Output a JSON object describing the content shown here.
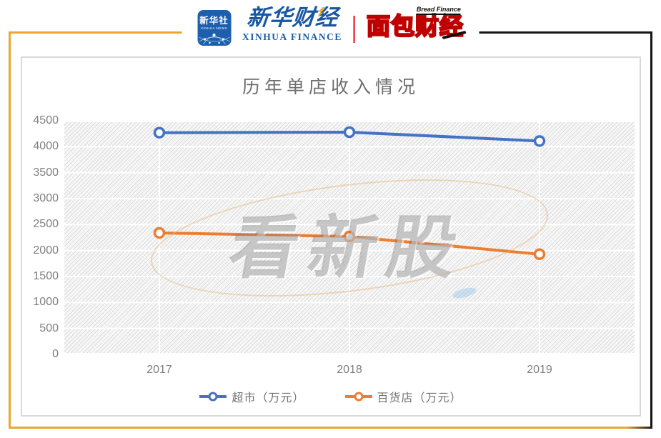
{
  "header": {
    "xinhua_news_app": {
      "cn": "新华社",
      "en": "XINHUA NEWS"
    },
    "xinhua_finance": {
      "cn": "新华财经",
      "en": "XINHUA FINANCE"
    },
    "bread_finance": {
      "cn": "面包财经",
      "en": "Bread Finance"
    }
  },
  "watermark": "看新股",
  "chart_data": {
    "type": "line",
    "title": "历年单店收入情况",
    "categories": [
      "2017",
      "2018",
      "2019"
    ],
    "series": [
      {
        "name": "超市（万元）",
        "color": "#4472C4",
        "values": [
          4270,
          4280,
          4110
        ]
      },
      {
        "name": "百货店（万元）",
        "color": "#ED7D31",
        "values": [
          2340,
          2270,
          1930
        ]
      }
    ],
    "ylim": [
      0,
      4500
    ],
    "yticks": [
      0,
      500,
      1000,
      1500,
      2000,
      2500,
      3000,
      3500,
      4000,
      4500
    ],
    "grid": true,
    "grid_color": "#FFFFFF",
    "legend_position": "bottom",
    "marker": "circle-open"
  },
  "colors": {
    "frame_gold": "#EAA72F",
    "frame_black": "#151515",
    "xinhua_blue": "#1A5DAD",
    "logo_red": "#C00000",
    "divider_red": "#E60012",
    "title_gray": "#6E6E6E",
    "axis_gray": "#7F7F7F"
  }
}
